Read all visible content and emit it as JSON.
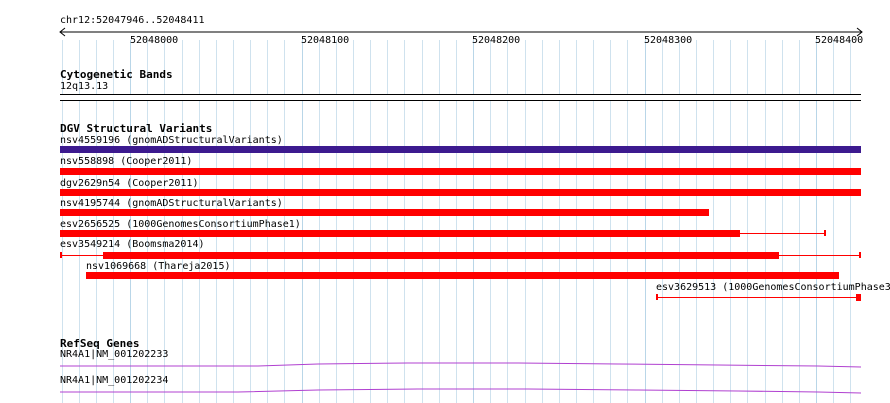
{
  "colors": {
    "grid": "#b9d6e8",
    "gridAlt": "#cfe2ee",
    "variant": "#ff0000",
    "gnomad": "#3c1a8f",
    "gene": "#b040d0",
    "axis": "#000000"
  },
  "ruler": {
    "location": "chr12:52047946..52048411",
    "ticks": [
      "52048000",
      "52048100",
      "52048200",
      "52048300",
      "52048400"
    ]
  },
  "cytobands": {
    "title": "Cytogenetic Bands",
    "band": "12q13.13"
  },
  "dgv": {
    "title": "DGV Structural Variants",
    "variants": [
      {
        "label": "nsv4559196 (gnomADStructuralVariants)"
      },
      {
        "label": "nsv558898 (Cooper2011)"
      },
      {
        "label": "dgv2629n54 (Cooper2011)"
      },
      {
        "label": "nsv4195744 (gnomADStructuralVariants)"
      },
      {
        "label": "esv2656525 (1000GenomesConsortiumPhase1)"
      },
      {
        "label": "esv3549214 (Boomsma2014)"
      },
      {
        "label": "nsv1069668 (Thareja2015)"
      },
      {
        "label": "esv3629513 (1000GenomesConsortiumPhase3"
      }
    ]
  },
  "refseq": {
    "title": "RefSeq Genes",
    "genes": [
      {
        "label": "NR4A1|NM_001202233"
      },
      {
        "label": "NR4A1|NM_001202234"
      }
    ]
  }
}
